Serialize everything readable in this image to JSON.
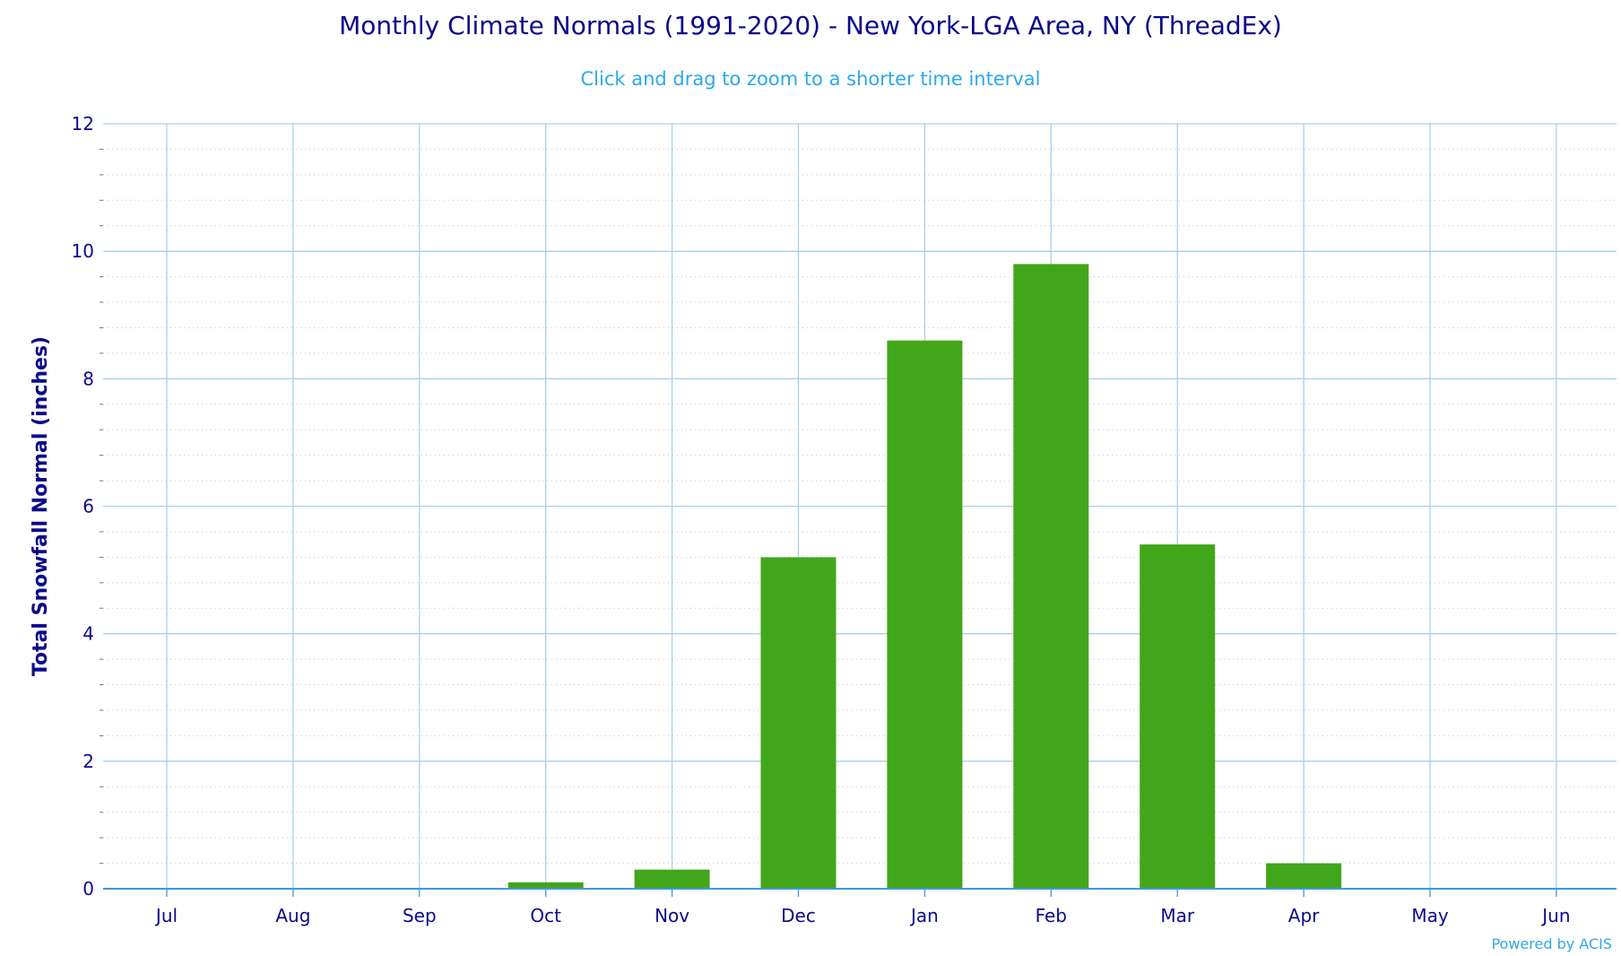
{
  "chart_data": {
    "type": "bar",
    "title": "Monthly Climate Normals (1991-2020) - New York-LGA Area, NY (ThreadEx)",
    "subtitle": "Click and drag to zoom to a shorter time interval",
    "xlabel": "",
    "ylabel": "Total Snowfall Normal (inches)",
    "categories": [
      "Jul",
      "Aug",
      "Sep",
      "Oct",
      "Nov",
      "Dec",
      "Jan",
      "Feb",
      "Mar",
      "Apr",
      "May",
      "Jun"
    ],
    "values": [
      0,
      0,
      0,
      0.1,
      0.3,
      5.2,
      8.6,
      9.8,
      5.4,
      0.4,
      0,
      0
    ],
    "ylim": [
      0,
      12
    ],
    "yticks": [
      0,
      2,
      4,
      6,
      8,
      10,
      12
    ],
    "grid": true,
    "legend": "none",
    "colors": {
      "bar": "#41a61a",
      "grid": "#a8d0ee",
      "minor_grid": "#c8c8c8",
      "axis_text": "#0a0a8c"
    }
  },
  "credit": "Powered by ACIS"
}
